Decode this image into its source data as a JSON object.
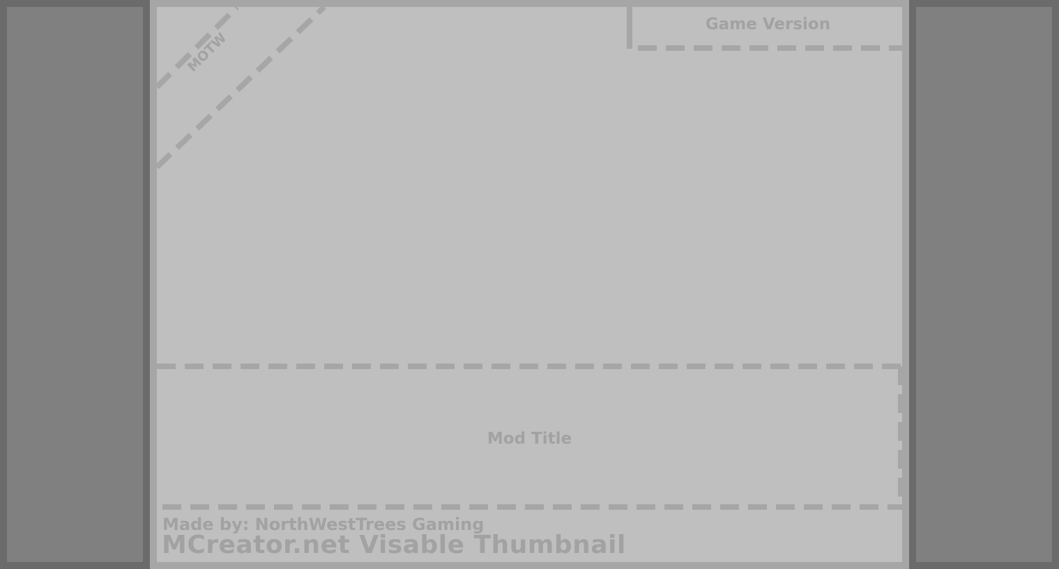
{
  "template": {
    "game_version": "Game Version",
    "motw": "MOTW",
    "mod_title": "Mod Title",
    "made_by": "Made by: NorthWestTrees Gaming",
    "title": "MCreator.net Visable Thumbnail"
  },
  "colors": {
    "outer_background": "#a6a6a6",
    "side_frame": "#6b6b6b",
    "side_panel": "#808080",
    "canvas": "#bfbfbf",
    "guide_lines": "#a6a6a6",
    "text": "#a2a2a2"
  }
}
